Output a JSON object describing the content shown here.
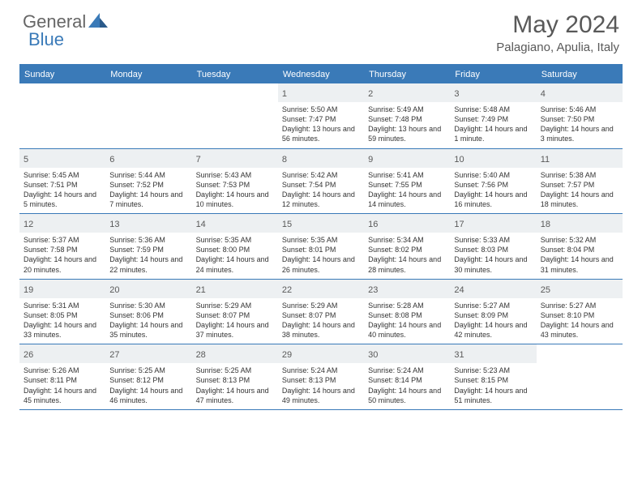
{
  "brand": {
    "part1": "General",
    "part2": "Blue"
  },
  "title": {
    "month": "May 2024",
    "location": "Palagiano, Apulia, Italy"
  },
  "colors": {
    "accent": "#3a7ab8",
    "header_bg": "#3a7ab8",
    "daynum_bg": "#edf0f2",
    "text_muted": "#595959",
    "body_text": "#333333",
    "brand_gray": "#666666"
  },
  "dow": [
    "Sunday",
    "Monday",
    "Tuesday",
    "Wednesday",
    "Thursday",
    "Friday",
    "Saturday"
  ],
  "weeks": [
    [
      {
        "blank": true
      },
      {
        "blank": true
      },
      {
        "blank": true
      },
      {
        "n": "1",
        "sr": "Sunrise: 5:50 AM",
        "ss": "Sunset: 7:47 PM",
        "dl": "Daylight: 13 hours and 56 minutes."
      },
      {
        "n": "2",
        "sr": "Sunrise: 5:49 AM",
        "ss": "Sunset: 7:48 PM",
        "dl": "Daylight: 13 hours and 59 minutes."
      },
      {
        "n": "3",
        "sr": "Sunrise: 5:48 AM",
        "ss": "Sunset: 7:49 PM",
        "dl": "Daylight: 14 hours and 1 minute."
      },
      {
        "n": "4",
        "sr": "Sunrise: 5:46 AM",
        "ss": "Sunset: 7:50 PM",
        "dl": "Daylight: 14 hours and 3 minutes."
      }
    ],
    [
      {
        "n": "5",
        "sr": "Sunrise: 5:45 AM",
        "ss": "Sunset: 7:51 PM",
        "dl": "Daylight: 14 hours and 5 minutes."
      },
      {
        "n": "6",
        "sr": "Sunrise: 5:44 AM",
        "ss": "Sunset: 7:52 PM",
        "dl": "Daylight: 14 hours and 7 minutes."
      },
      {
        "n": "7",
        "sr": "Sunrise: 5:43 AM",
        "ss": "Sunset: 7:53 PM",
        "dl": "Daylight: 14 hours and 10 minutes."
      },
      {
        "n": "8",
        "sr": "Sunrise: 5:42 AM",
        "ss": "Sunset: 7:54 PM",
        "dl": "Daylight: 14 hours and 12 minutes."
      },
      {
        "n": "9",
        "sr": "Sunrise: 5:41 AM",
        "ss": "Sunset: 7:55 PM",
        "dl": "Daylight: 14 hours and 14 minutes."
      },
      {
        "n": "10",
        "sr": "Sunrise: 5:40 AM",
        "ss": "Sunset: 7:56 PM",
        "dl": "Daylight: 14 hours and 16 minutes."
      },
      {
        "n": "11",
        "sr": "Sunrise: 5:38 AM",
        "ss": "Sunset: 7:57 PM",
        "dl": "Daylight: 14 hours and 18 minutes."
      }
    ],
    [
      {
        "n": "12",
        "sr": "Sunrise: 5:37 AM",
        "ss": "Sunset: 7:58 PM",
        "dl": "Daylight: 14 hours and 20 minutes."
      },
      {
        "n": "13",
        "sr": "Sunrise: 5:36 AM",
        "ss": "Sunset: 7:59 PM",
        "dl": "Daylight: 14 hours and 22 minutes."
      },
      {
        "n": "14",
        "sr": "Sunrise: 5:35 AM",
        "ss": "Sunset: 8:00 PM",
        "dl": "Daylight: 14 hours and 24 minutes."
      },
      {
        "n": "15",
        "sr": "Sunrise: 5:35 AM",
        "ss": "Sunset: 8:01 PM",
        "dl": "Daylight: 14 hours and 26 minutes."
      },
      {
        "n": "16",
        "sr": "Sunrise: 5:34 AM",
        "ss": "Sunset: 8:02 PM",
        "dl": "Daylight: 14 hours and 28 minutes."
      },
      {
        "n": "17",
        "sr": "Sunrise: 5:33 AM",
        "ss": "Sunset: 8:03 PM",
        "dl": "Daylight: 14 hours and 30 minutes."
      },
      {
        "n": "18",
        "sr": "Sunrise: 5:32 AM",
        "ss": "Sunset: 8:04 PM",
        "dl": "Daylight: 14 hours and 31 minutes."
      }
    ],
    [
      {
        "n": "19",
        "sr": "Sunrise: 5:31 AM",
        "ss": "Sunset: 8:05 PM",
        "dl": "Daylight: 14 hours and 33 minutes."
      },
      {
        "n": "20",
        "sr": "Sunrise: 5:30 AM",
        "ss": "Sunset: 8:06 PM",
        "dl": "Daylight: 14 hours and 35 minutes."
      },
      {
        "n": "21",
        "sr": "Sunrise: 5:29 AM",
        "ss": "Sunset: 8:07 PM",
        "dl": "Daylight: 14 hours and 37 minutes."
      },
      {
        "n": "22",
        "sr": "Sunrise: 5:29 AM",
        "ss": "Sunset: 8:07 PM",
        "dl": "Daylight: 14 hours and 38 minutes."
      },
      {
        "n": "23",
        "sr": "Sunrise: 5:28 AM",
        "ss": "Sunset: 8:08 PM",
        "dl": "Daylight: 14 hours and 40 minutes."
      },
      {
        "n": "24",
        "sr": "Sunrise: 5:27 AM",
        "ss": "Sunset: 8:09 PM",
        "dl": "Daylight: 14 hours and 42 minutes."
      },
      {
        "n": "25",
        "sr": "Sunrise: 5:27 AM",
        "ss": "Sunset: 8:10 PM",
        "dl": "Daylight: 14 hours and 43 minutes."
      }
    ],
    [
      {
        "n": "26",
        "sr": "Sunrise: 5:26 AM",
        "ss": "Sunset: 8:11 PM",
        "dl": "Daylight: 14 hours and 45 minutes."
      },
      {
        "n": "27",
        "sr": "Sunrise: 5:25 AM",
        "ss": "Sunset: 8:12 PM",
        "dl": "Daylight: 14 hours and 46 minutes."
      },
      {
        "n": "28",
        "sr": "Sunrise: 5:25 AM",
        "ss": "Sunset: 8:13 PM",
        "dl": "Daylight: 14 hours and 47 minutes."
      },
      {
        "n": "29",
        "sr": "Sunrise: 5:24 AM",
        "ss": "Sunset: 8:13 PM",
        "dl": "Daylight: 14 hours and 49 minutes."
      },
      {
        "n": "30",
        "sr": "Sunrise: 5:24 AM",
        "ss": "Sunset: 8:14 PM",
        "dl": "Daylight: 14 hours and 50 minutes."
      },
      {
        "n": "31",
        "sr": "Sunrise: 5:23 AM",
        "ss": "Sunset: 8:15 PM",
        "dl": "Daylight: 14 hours and 51 minutes."
      },
      {
        "blank": true
      }
    ]
  ]
}
